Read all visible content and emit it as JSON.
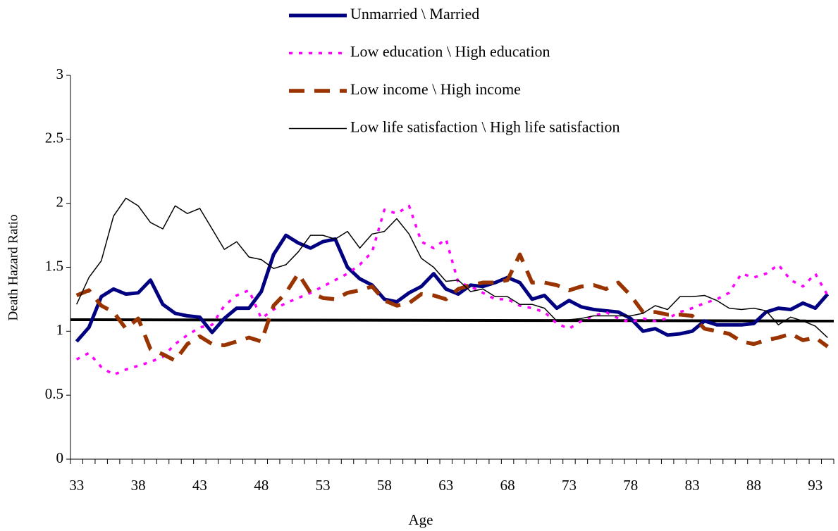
{
  "chart_data": {
    "type": "line",
    "x_label": "Age",
    "y_label": "Death Hazard Ratio",
    "legend": "top",
    "categories": [
      "33",
      null,
      null,
      null,
      null,
      "38",
      null,
      null,
      null,
      null,
      "43",
      null,
      null,
      null,
      null,
      "48",
      null,
      null,
      null,
      null,
      "53",
      null,
      null,
      null,
      null,
      "58",
      null,
      null,
      null,
      null,
      "63",
      null,
      null,
      null,
      null,
      "68",
      null,
      null,
      null,
      null,
      "73",
      null,
      null,
      null,
      null,
      "78",
      null,
      null,
      null,
      null,
      "83",
      null,
      null,
      null,
      null,
      "88",
      null,
      null,
      null,
      null,
      "93",
      null
    ],
    "ylim": [
      0,
      3
    ],
    "yticks": [
      0,
      0.5,
      1,
      1.5,
      2,
      2.5,
      3
    ],
    "reference_line": {
      "color": "#000000",
      "values": [
        1.09,
        1.08
      ]
    },
    "series": [
      {
        "name": "Unmarried \\ Married",
        "color": "#000080",
        "style": "solid-thick",
        "values": [
          0.92,
          1.03,
          1.27,
          1.33,
          1.29,
          1.3,
          1.4,
          1.21,
          1.14,
          1.12,
          1.11,
          0.99,
          1.1,
          1.18,
          1.18,
          1.31,
          1.6,
          1.75,
          1.69,
          1.65,
          1.7,
          1.72,
          1.5,
          1.41,
          1.36,
          1.25,
          1.23,
          1.3,
          1.35,
          1.45,
          1.33,
          1.29,
          1.36,
          1.35,
          1.38,
          1.42,
          1.38,
          1.25,
          1.28,
          1.18,
          1.24,
          1.19,
          1.17,
          1.16,
          1.15,
          1.1,
          1.0,
          1.02,
          0.97,
          0.98,
          1.0,
          1.08,
          1.05,
          1.05,
          1.05,
          1.06,
          1.15,
          1.18,
          1.17,
          1.22,
          1.18,
          1.29
        ]
      },
      {
        "name": "Low education \\ High education",
        "color": "#ff00ff",
        "style": "dotted",
        "values": [
          0.78,
          0.83,
          0.72,
          0.66,
          0.7,
          0.73,
          0.76,
          0.8,
          0.9,
          0.97,
          1.03,
          1.05,
          1.2,
          1.28,
          1.32,
          1.1,
          1.17,
          1.22,
          1.26,
          1.3,
          1.35,
          1.4,
          1.45,
          1.52,
          1.62,
          1.95,
          1.92,
          1.98,
          1.7,
          1.65,
          1.72,
          1.38,
          1.35,
          1.3,
          1.25,
          1.25,
          1.2,
          1.18,
          1.15,
          1.06,
          1.02,
          1.08,
          1.12,
          1.15,
          1.1,
          1.07,
          1.1,
          1.08,
          1.1,
          1.15,
          1.18,
          1.22,
          1.25,
          1.3,
          1.45,
          1.42,
          1.45,
          1.52,
          1.4,
          1.35,
          1.45,
          1.28
        ]
      },
      {
        "name": "Low income \\ High income",
        "color": "#993300",
        "style": "dashed",
        "values": [
          1.28,
          1.32,
          1.2,
          1.15,
          1.02,
          1.1,
          0.86,
          0.82,
          0.77,
          0.9,
          0.96,
          0.9,
          0.89,
          0.92,
          0.95,
          0.92,
          1.2,
          1.3,
          1.45,
          1.3,
          1.26,
          1.25,
          1.3,
          1.32,
          1.35,
          1.24,
          1.2,
          1.22,
          1.29,
          1.28,
          1.25,
          1.33,
          1.36,
          1.38,
          1.38,
          1.4,
          1.6,
          1.38,
          1.38,
          1.36,
          1.32,
          1.35,
          1.36,
          1.33,
          1.38,
          1.28,
          1.15,
          1.15,
          1.13,
          1.13,
          1.12,
          1.02,
          1.0,
          0.98,
          0.92,
          0.9,
          0.93,
          0.95,
          0.98,
          0.93,
          0.95,
          0.88
        ]
      },
      {
        "name": "Low life satisfaction \\ High life satisfaction",
        "color": "#000000",
        "style": "thin",
        "values": [
          1.21,
          1.42,
          1.55,
          1.9,
          2.04,
          1.98,
          1.85,
          1.8,
          1.98,
          1.92,
          1.96,
          1.8,
          1.64,
          1.7,
          1.58,
          1.56,
          1.49,
          1.52,
          1.62,
          1.75,
          1.75,
          1.72,
          1.78,
          1.65,
          1.76,
          1.78,
          1.88,
          1.76,
          1.57,
          1.5,
          1.39,
          1.4,
          1.31,
          1.33,
          1.27,
          1.27,
          1.21,
          1.21,
          1.18,
          1.08,
          1.09,
          1.1,
          1.12,
          1.12,
          1.12,
          1.12,
          1.14,
          1.2,
          1.17,
          1.27,
          1.27,
          1.28,
          1.24,
          1.18,
          1.17,
          1.18,
          1.16,
          1.05,
          1.11,
          1.08,
          1.04,
          0.95
        ]
      }
    ]
  }
}
